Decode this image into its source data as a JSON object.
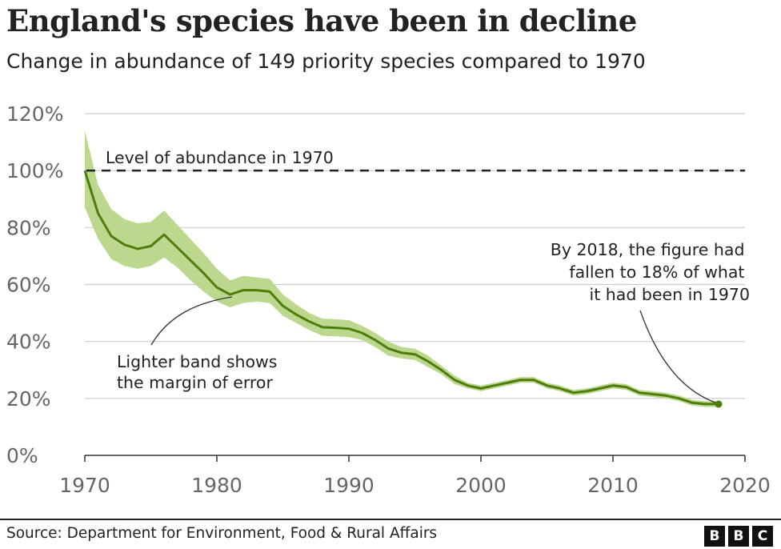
{
  "header": {
    "title": "England's species have been in decline",
    "subtitle": "Change in abundance of 149 priority species compared to 1970"
  },
  "footer": {
    "source": "Source: Department for Environment, Food & Rural Affairs",
    "logo": [
      "B",
      "B",
      "C"
    ]
  },
  "colors": {
    "line": "#4f7d0d",
    "band": "#bcd88f",
    "grid": "#cccccc",
    "reference": "#222222"
  },
  "chart_data": {
    "type": "line",
    "title": "England's species have been in decline",
    "subtitle": "Change in abundance of 149 priority species compared to 1970",
    "xlim": [
      1970,
      2020
    ],
    "ylim": [
      0,
      120
    ],
    "x_ticks": [
      1970,
      1980,
      1990,
      2000,
      2010,
      2020
    ],
    "x_tick_labels": [
      "1970",
      "1980",
      "1990",
      "2000",
      "2010",
      "2020"
    ],
    "y_ticks": [
      0,
      20,
      40,
      60,
      80,
      100,
      120
    ],
    "y_tick_labels": [
      "0%",
      "20%",
      "40%",
      "60%",
      "80%",
      "100%",
      "120%"
    ],
    "grid": "horizontal",
    "reference_line": {
      "value": 100,
      "label": "Level of abundance in 1970"
    },
    "series": [
      {
        "x": [
          1970,
          1971,
          1972,
          1973,
          1974,
          1975,
          1976,
          1977,
          1978,
          1979,
          1980,
          1981,
          1982,
          1983,
          1984,
          1985,
          1986,
          1987,
          1988,
          1989,
          1990,
          1991,
          1992,
          1993,
          1994,
          1995,
          1996,
          1997,
          1998,
          1999,
          2000,
          2001,
          2002,
          2003,
          2004,
          2005,
          2006,
          2007,
          2008,
          2009,
          2010,
          2011,
          2012,
          2013,
          2014,
          2015,
          2016,
          2017,
          2018
        ],
        "y": [
          100,
          85,
          77,
          74,
          72.5,
          73.5,
          77.5,
          73,
          68.5,
          64,
          59,
          56.5,
          58,
          58,
          57.5,
          52.5,
          49.5,
          47,
          45,
          44.8,
          44.5,
          43,
          40.5,
          37.5,
          36,
          35.5,
          33,
          30,
          26.5,
          24.5,
          23.5,
          24.5,
          25.5,
          26.5,
          26.5,
          24.5,
          23.5,
          22,
          22.5,
          23.5,
          24.5,
          24,
          22,
          21.5,
          21,
          20,
          18.5,
          18,
          18
        ],
        "lower": [
          87,
          76,
          69,
          66.5,
          65.5,
          66.5,
          69.5,
          66,
          61.5,
          57.5,
          54,
          52,
          53.5,
          54,
          53.5,
          49,
          46.5,
          44,
          42,
          41.8,
          41.5,
          40.5,
          38,
          35,
          34,
          33.5,
          31,
          28.5,
          25,
          23.5,
          22.5,
          23.5,
          24.5,
          25.5,
          25.5,
          23.5,
          22.5,
          21,
          21.5,
          22.5,
          23.5,
          23,
          21,
          20.5,
          20,
          19,
          17.5,
          17,
          17
        ],
        "upper": [
          114,
          95,
          86.5,
          83,
          81.5,
          82,
          86,
          81,
          76,
          71,
          65.5,
          61.5,
          63,
          62.5,
          62,
          56.5,
          53,
          50,
          48,
          47.8,
          47.5,
          45.5,
          43,
          40,
          38,
          37.5,
          35,
          31.5,
          28,
          25.5,
          24.5,
          25.5,
          26.5,
          27.5,
          27.5,
          25.5,
          24.5,
          23,
          23.5,
          24.5,
          25.5,
          25,
          23,
          22.5,
          22,
          21,
          19.5,
          19,
          19
        ]
      }
    ],
    "annotations": [
      {
        "lines": [
          "Lighter band shows",
          "the margin of error"
        ]
      },
      {
        "lines": [
          "By 2018, the figure had",
          "fallen to 18% of what",
          "it had been in 1970"
        ]
      }
    ]
  }
}
